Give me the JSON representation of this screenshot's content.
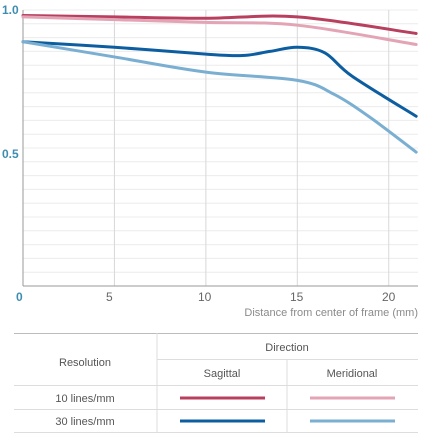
{
  "chart_data": {
    "type": "line",
    "xlabel": "Distance from center of frame (mm)",
    "ylabel": "",
    "xlim": [
      0,
      21.6
    ],
    "ylim": [
      0,
      1.0
    ],
    "xticks": [
      "0",
      "5",
      "10",
      "15",
      "20"
    ],
    "yticks": [
      "1.0",
      "0.5"
    ],
    "grid": true,
    "series": [
      {
        "key": "s10",
        "color": "#b8405e",
        "x": [
          0,
          5,
          10,
          15,
          21.5
        ],
        "y": [
          0.98,
          0.975,
          0.97,
          0.975,
          0.915
        ]
      },
      {
        "key": "m10",
        "color": "#e3a4b6",
        "x": [
          0,
          5,
          10,
          15,
          21.5
        ],
        "y": [
          0.975,
          0.965,
          0.955,
          0.945,
          0.875
        ]
      },
      {
        "key": "s30",
        "color": "#0d5ea0",
        "x": [
          0,
          5,
          10,
          12,
          13.5,
          15,
          16.5,
          18,
          21.5
        ],
        "y": [
          0.885,
          0.865,
          0.84,
          0.835,
          0.85,
          0.865,
          0.845,
          0.76,
          0.615
        ]
      },
      {
        "key": "m30",
        "color": "#7aafd2",
        "x": [
          0,
          5,
          10,
          15,
          17,
          19,
          21.5
        ],
        "y": [
          0.885,
          0.83,
          0.775,
          0.745,
          0.695,
          0.61,
          0.485
        ]
      }
    ]
  },
  "legend": {
    "resolution_header": "Resolution",
    "direction_header": "Direction",
    "sagittal_header": "Sagittal",
    "meridional_header": "Meridional",
    "rows": [
      {
        "label": "10 lines/mm",
        "sagittal_color": "#b8405e",
        "meridional_color": "#e3a4b6"
      },
      {
        "label": "30 lines/mm",
        "sagittal_color": "#0d5ea0",
        "meridional_color": "#7aafd2"
      }
    ]
  }
}
